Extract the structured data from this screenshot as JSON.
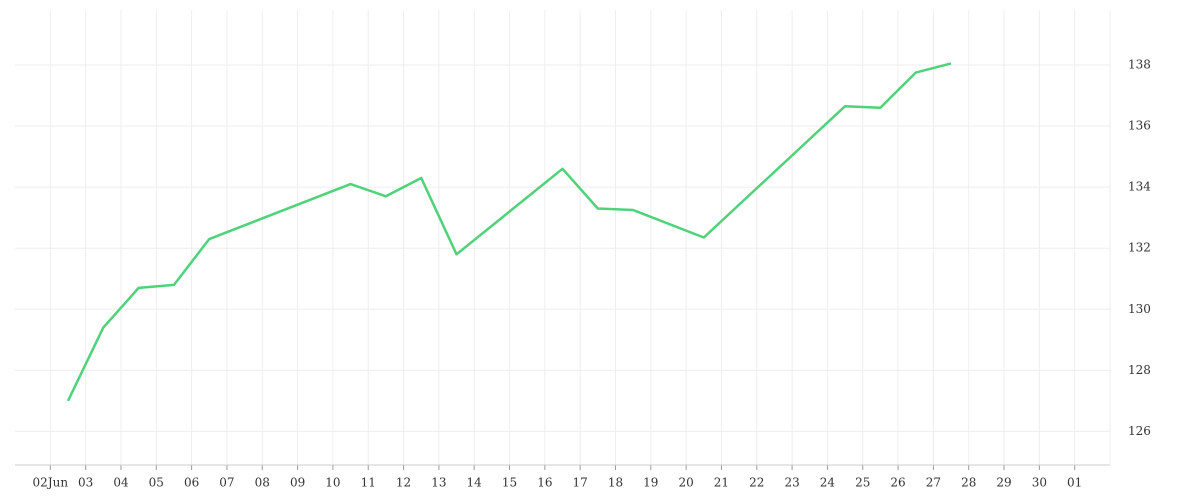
{
  "chart_data": {
    "type": "line",
    "x": [
      2.5,
      3.5,
      4.5,
      5.5,
      6.5,
      10.5,
      11.5,
      12.5,
      13.5,
      16.5,
      17.5,
      18.5,
      20.5,
      24.5,
      25.5,
      26.5,
      27.5
    ],
    "series": [
      {
        "color": "#4fd27a",
        "values": [
          127.0,
          129.4,
          130.7,
          130.8,
          132.3,
          134.1,
          133.7,
          134.3,
          131.8,
          134.6,
          133.3,
          133.25,
          132.35,
          136.65,
          136.6,
          137.75,
          138.05
        ]
      }
    ],
    "xlim": [
      1,
      32
    ],
    "xticks": [
      {
        "value": 2,
        "label": "02Jun"
      },
      {
        "value": 3,
        "label": "03"
      },
      {
        "value": 4,
        "label": "04"
      },
      {
        "value": 5,
        "label": "05"
      },
      {
        "value": 6,
        "label": "06"
      },
      {
        "value": 7,
        "label": "07"
      },
      {
        "value": 8,
        "label": "08"
      },
      {
        "value": 9,
        "label": "09"
      },
      10,
      11,
      12,
      13,
      14,
      15,
      16,
      17,
      18,
      19,
      20,
      21,
      22,
      23,
      24,
      25,
      26,
      27,
      28,
      29,
      30,
      {
        "value": 31,
        "label": "01"
      }
    ],
    "ylim": [
      124.9,
      139.8
    ],
    "yticks": [
      126,
      128,
      130,
      132,
      134,
      136,
      138
    ],
    "grid": true
  }
}
